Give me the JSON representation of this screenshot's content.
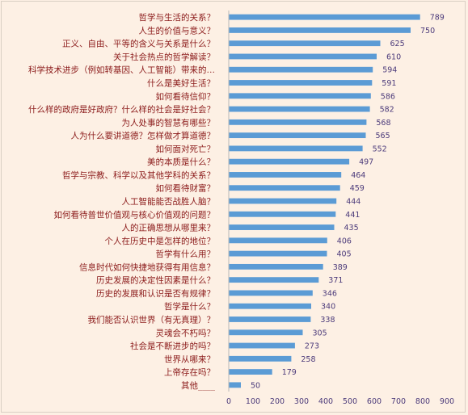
{
  "chart_data": {
    "type": "bar",
    "orientation": "horizontal",
    "title": "",
    "xlabel": "",
    "ylabel": "",
    "xlim": [
      0,
      900
    ],
    "xticks": [
      0,
      100,
      200,
      300,
      400,
      500,
      600,
      700,
      800,
      900
    ],
    "grid": false,
    "legend": "none",
    "bar_color": "#5b9bd5",
    "label_color": "#8b1a1a",
    "value_label_color": "#4b3a7a",
    "categories": [
      "哲学与生活的关系？",
      "人生的价值与意义？",
      "正义、自由、平等的含义与关系是什么？",
      "关于社会热点的哲学解读？",
      "科学技术进步（例如转基因、人工智能）带来的…",
      "什么是美好生活？",
      "如何看待信仰？",
      "什么样的政府是好政府？什么样的社会是好社会？",
      "为人处事的智慧有哪些？",
      "人为什么要讲道德？怎样做才算道德？",
      "如何面对死亡？",
      "美的本质是什么？",
      "哲学与宗教、科学以及其他学科的关系？",
      "如何看待财富？",
      "人工智能能否战胜人脑？",
      "如何看待普世价值观与核心价值观的问题？",
      "人的正确思想从哪里来？",
      "个人在历史中是怎样的地位？",
      "哲学有什么用？",
      "信息时代如何快捷地获得有用信息？",
      "历史发展的决定性因素是什么？",
      "历史的发展和认识是否有规律？",
      "哲学是什么？",
      "我们能否认识世界（有无真理）？",
      "灵魂会不朽吗？",
      "社会是不断进步的吗？",
      "世界从哪来？",
      "上帝存在吗？",
      "其他____"
    ],
    "values": [
      789,
      750,
      625,
      610,
      594,
      591,
      586,
      582,
      568,
      565,
      552,
      497,
      464,
      459,
      444,
      441,
      435,
      406,
      405,
      389,
      371,
      346,
      340,
      338,
      305,
      273,
      258,
      179,
      50
    ]
  }
}
